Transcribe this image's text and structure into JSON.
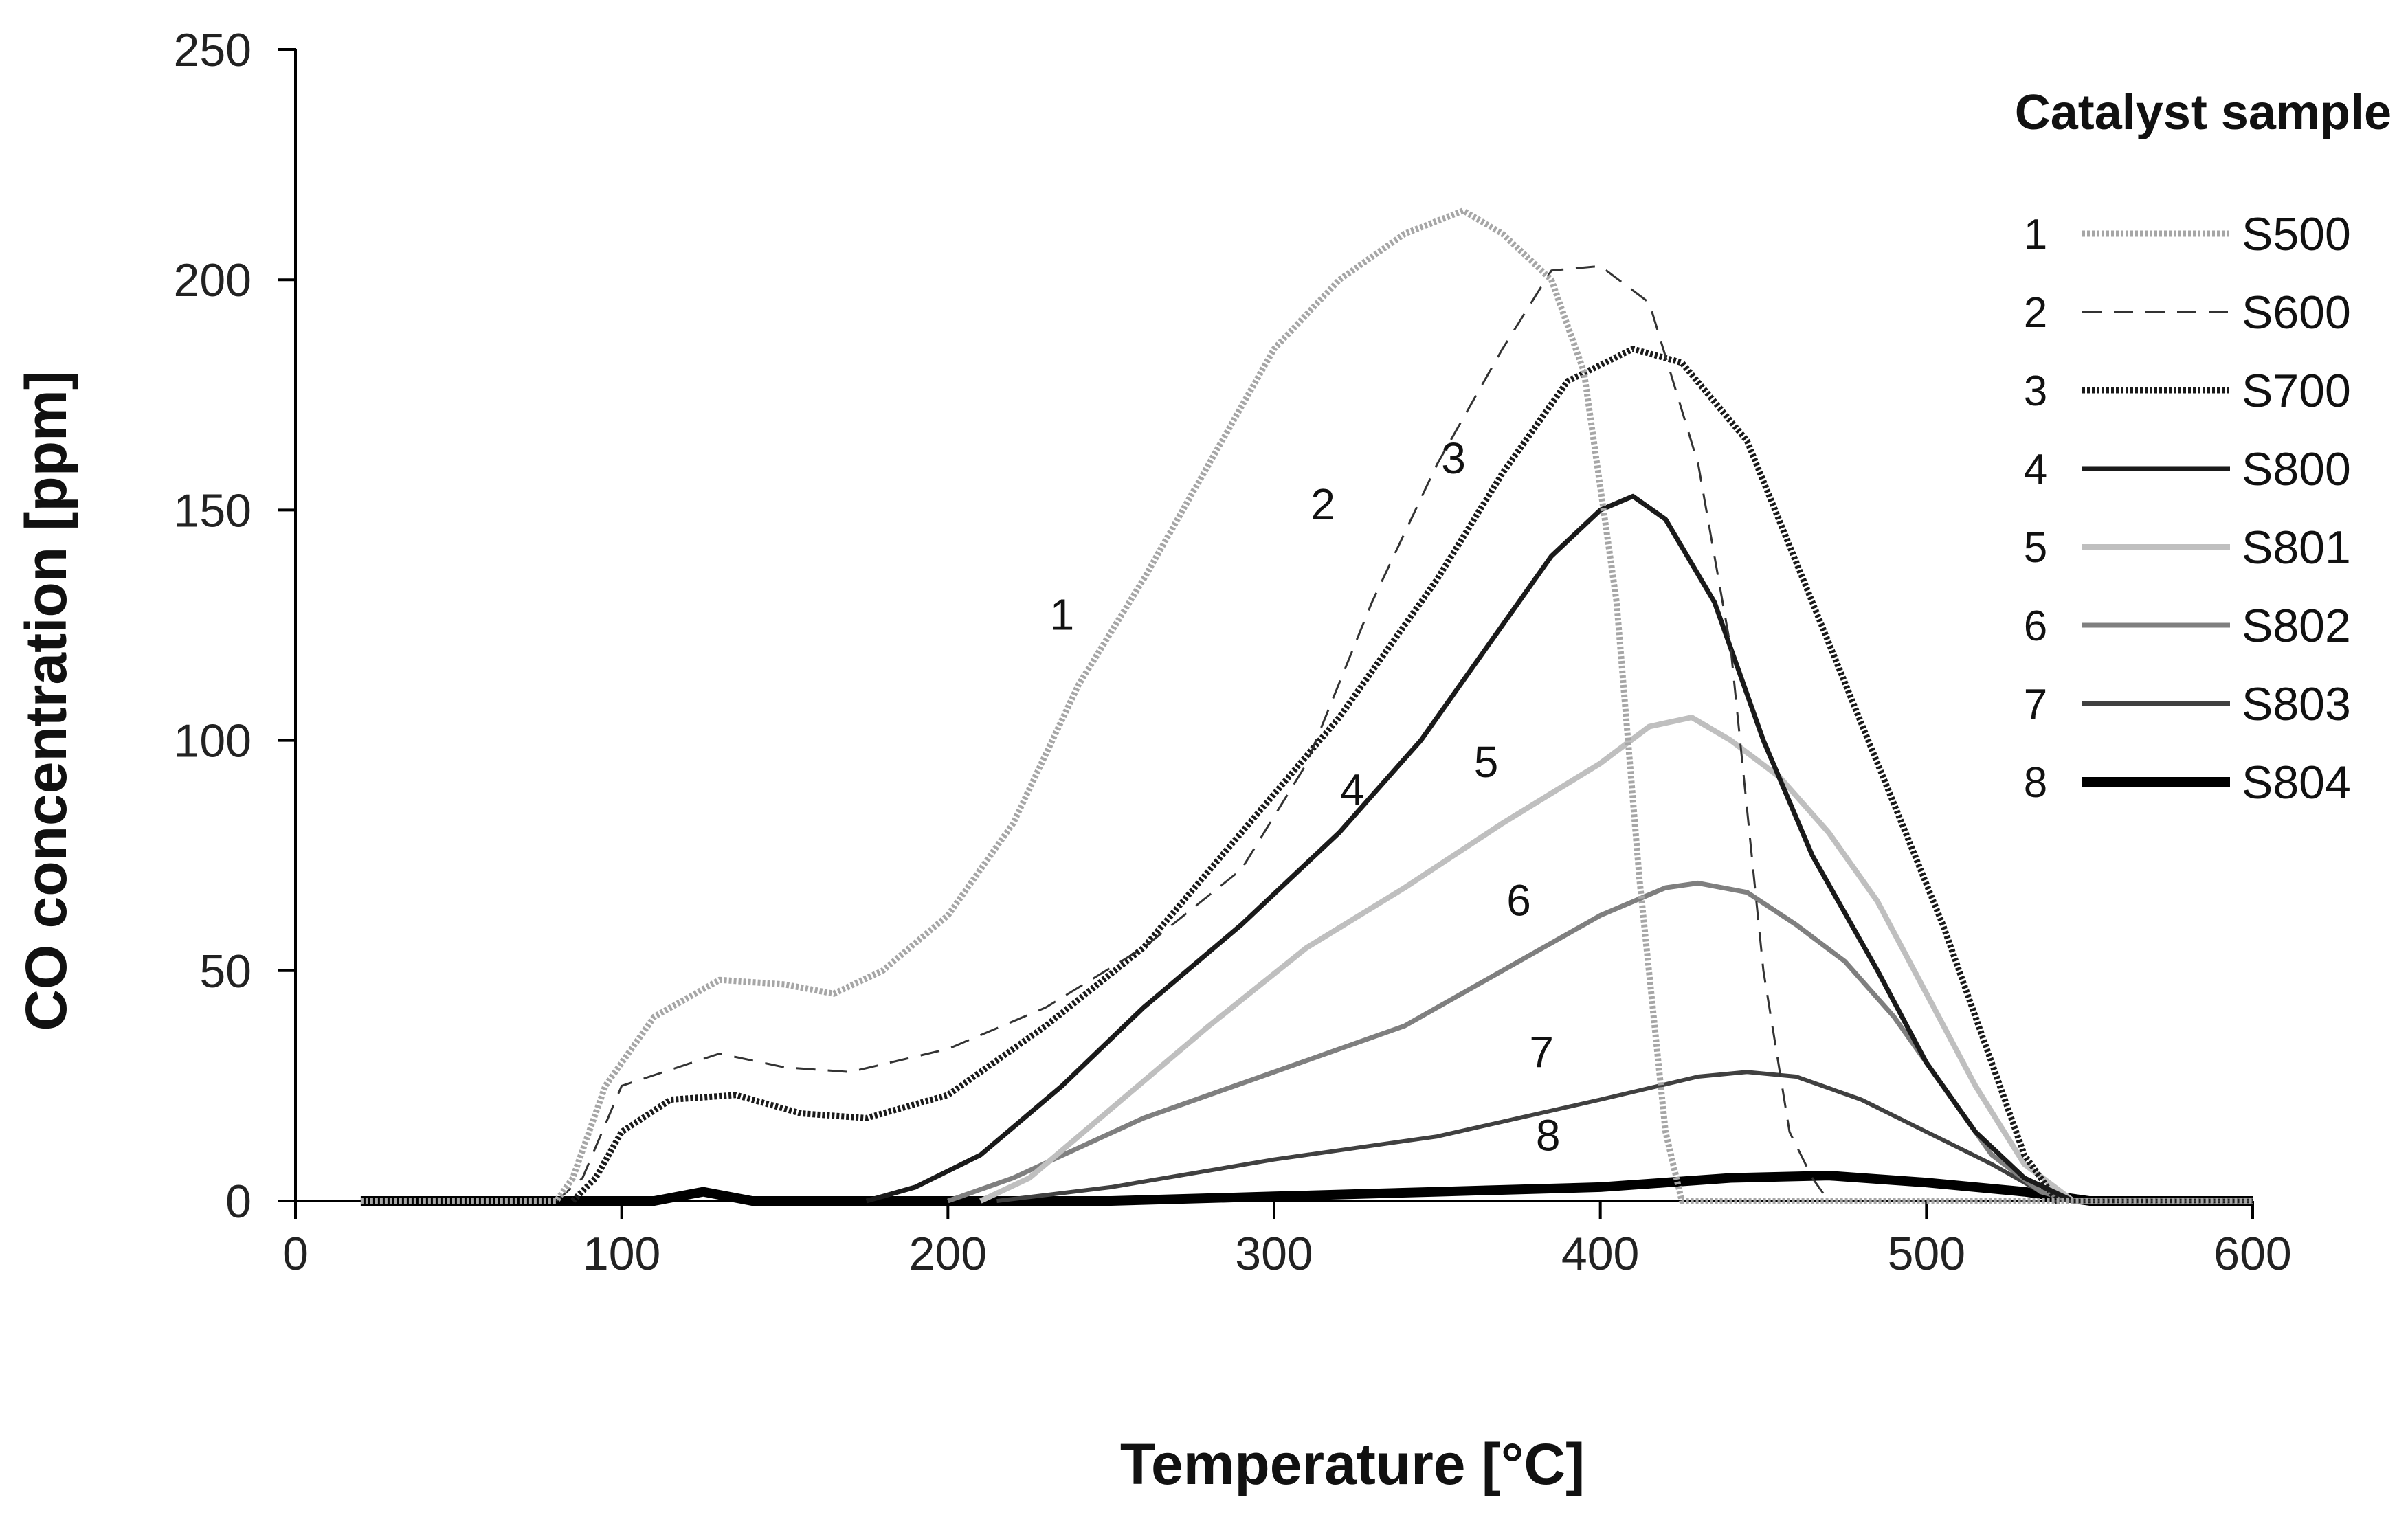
{
  "chart_data": {
    "type": "line",
    "xlabel": "Temperature [°C]",
    "ylabel": "CO concentration [ppm]",
    "xlim": [
      0,
      600
    ],
    "ylim": [
      0,
      250
    ],
    "x_ticks": [
      "0",
      "100",
      "200",
      "300",
      "400",
      "500",
      "600"
    ],
    "y_ticks": [
      "0",
      "50",
      "100",
      "150",
      "200",
      "250"
    ],
    "grid": false,
    "legend": {
      "title": "Catalyst sample",
      "position": "top-right"
    },
    "series": [
      {
        "num": "1",
        "name": "S500",
        "color": "#a6a6a6",
        "style": "dotted-gray",
        "points": [
          [
            20,
            0
          ],
          [
            80,
            0
          ],
          [
            85,
            5
          ],
          [
            95,
            25
          ],
          [
            110,
            40
          ],
          [
            130,
            48
          ],
          [
            150,
            47
          ],
          [
            165,
            45
          ],
          [
            180,
            50
          ],
          [
            200,
            62
          ],
          [
            220,
            82
          ],
          [
            240,
            112
          ],
          [
            260,
            135
          ],
          [
            280,
            160
          ],
          [
            300,
            185
          ],
          [
            320,
            200
          ],
          [
            340,
            210
          ],
          [
            358,
            215
          ],
          [
            370,
            210
          ],
          [
            385,
            200
          ],
          [
            395,
            180
          ],
          [
            405,
            130
          ],
          [
            412,
            70
          ],
          [
            420,
            15
          ],
          [
            425,
            0
          ],
          [
            600,
            0
          ]
        ]
      },
      {
        "num": "2",
        "name": "S600",
        "color": "#333333",
        "style": "dashed",
        "points": [
          [
            80,
            0
          ],
          [
            88,
            5
          ],
          [
            100,
            25
          ],
          [
            130,
            32
          ],
          [
            150,
            29
          ],
          [
            170,
            28
          ],
          [
            200,
            33
          ],
          [
            230,
            42
          ],
          [
            260,
            55
          ],
          [
            290,
            72
          ],
          [
            310,
            95
          ],
          [
            330,
            130
          ],
          [
            350,
            160
          ],
          [
            370,
            185
          ],
          [
            385,
            202
          ],
          [
            400,
            203
          ],
          [
            415,
            195
          ],
          [
            430,
            160
          ],
          [
            440,
            120
          ],
          [
            450,
            50
          ],
          [
            458,
            15
          ],
          [
            465,
            5
          ],
          [
            470,
            0
          ],
          [
            600,
            0
          ]
        ]
      },
      {
        "num": "3",
        "name": "S700",
        "color": "#1a1a1a",
        "style": "dotted-black",
        "points": [
          [
            85,
            0
          ],
          [
            92,
            5
          ],
          [
            100,
            15
          ],
          [
            115,
            22
          ],
          [
            135,
            23
          ],
          [
            155,
            19
          ],
          [
            175,
            18
          ],
          [
            200,
            23
          ],
          [
            230,
            38
          ],
          [
            260,
            55
          ],
          [
            290,
            80
          ],
          [
            320,
            105
          ],
          [
            350,
            135
          ],
          [
            370,
            158
          ],
          [
            390,
            178
          ],
          [
            410,
            185
          ],
          [
            425,
            182
          ],
          [
            445,
            165
          ],
          [
            465,
            130
          ],
          [
            485,
            95
          ],
          [
            505,
            60
          ],
          [
            520,
            30
          ],
          [
            530,
            10
          ],
          [
            540,
            0
          ],
          [
            600,
            0
          ]
        ]
      },
      {
        "num": "4",
        "name": "S800",
        "color": "#1a1a1a",
        "style": "solid",
        "points": [
          [
            175,
            0
          ],
          [
            190,
            3
          ],
          [
            210,
            10
          ],
          [
            235,
            25
          ],
          [
            260,
            42
          ],
          [
            290,
            60
          ],
          [
            320,
            80
          ],
          [
            345,
            100
          ],
          [
            365,
            120
          ],
          [
            385,
            140
          ],
          [
            400,
            150
          ],
          [
            410,
            153
          ],
          [
            420,
            148
          ],
          [
            435,
            130
          ],
          [
            450,
            100
          ],
          [
            465,
            75
          ],
          [
            485,
            50
          ],
          [
            500,
            30
          ],
          [
            515,
            15
          ],
          [
            530,
            5
          ],
          [
            545,
            0
          ],
          [
            600,
            0
          ]
        ]
      },
      {
        "num": "5",
        "name": "S801",
        "color": "#bfbfbf",
        "style": "solid-light",
        "points": [
          [
            210,
            0
          ],
          [
            225,
            5
          ],
          [
            250,
            20
          ],
          [
            280,
            38
          ],
          [
            310,
            55
          ],
          [
            340,
            68
          ],
          [
            370,
            82
          ],
          [
            400,
            95
          ],
          [
            415,
            103
          ],
          [
            428,
            105
          ],
          [
            440,
            100
          ],
          [
            455,
            92
          ],
          [
            470,
            80
          ],
          [
            485,
            65
          ],
          [
            500,
            45
          ],
          [
            515,
            25
          ],
          [
            530,
            8
          ],
          [
            545,
            0
          ],
          [
            600,
            0
          ]
        ]
      },
      {
        "num": "6",
        "name": "S802",
        "color": "#7f7f7f",
        "style": "solid-mid",
        "points": [
          [
            200,
            0
          ],
          [
            220,
            5
          ],
          [
            260,
            18
          ],
          [
            300,
            28
          ],
          [
            340,
            38
          ],
          [
            370,
            50
          ],
          [
            400,
            62
          ],
          [
            420,
            68
          ],
          [
            430,
            69
          ],
          [
            445,
            67
          ],
          [
            460,
            60
          ],
          [
            475,
            52
          ],
          [
            490,
            40
          ],
          [
            505,
            25
          ],
          [
            520,
            10
          ],
          [
            535,
            2
          ],
          [
            545,
            0
          ],
          [
            600,
            0
          ]
        ]
      },
      {
        "num": "7",
        "name": "S803",
        "color": "#404040",
        "style": "solid-dark",
        "points": [
          [
            215,
            0
          ],
          [
            250,
            3
          ],
          [
            300,
            9
          ],
          [
            350,
            14
          ],
          [
            400,
            22
          ],
          [
            430,
            27
          ],
          [
            445,
            28
          ],
          [
            460,
            27
          ],
          [
            480,
            22
          ],
          [
            500,
            15
          ],
          [
            520,
            8
          ],
          [
            535,
            2
          ],
          [
            545,
            0
          ],
          [
            600,
            0
          ]
        ]
      },
      {
        "num": "8",
        "name": "S804",
        "color": "#000000",
        "style": "solid-thick",
        "points": [
          [
            20,
            0
          ],
          [
            110,
            0
          ],
          [
            125,
            2
          ],
          [
            140,
            0
          ],
          [
            250,
            0
          ],
          [
            300,
            1
          ],
          [
            350,
            2
          ],
          [
            400,
            3
          ],
          [
            440,
            5
          ],
          [
            470,
            5.5
          ],
          [
            500,
            4
          ],
          [
            530,
            2
          ],
          [
            550,
            0
          ],
          [
            600,
            0
          ]
        ]
      }
    ],
    "curve_labels": [
      {
        "text": "1",
        "x": 235,
        "y": 124
      },
      {
        "text": "2",
        "x": 315,
        "y": 148
      },
      {
        "text": "3",
        "x": 355,
        "y": 158
      },
      {
        "text": "4",
        "x": 324,
        "y": 86
      },
      {
        "text": "5",
        "x": 365,
        "y": 92
      },
      {
        "text": "6",
        "x": 375,
        "y": 62
      },
      {
        "text": "7",
        "x": 382,
        "y": 29
      },
      {
        "text": "8",
        "x": 384,
        "y": 11
      }
    ]
  }
}
